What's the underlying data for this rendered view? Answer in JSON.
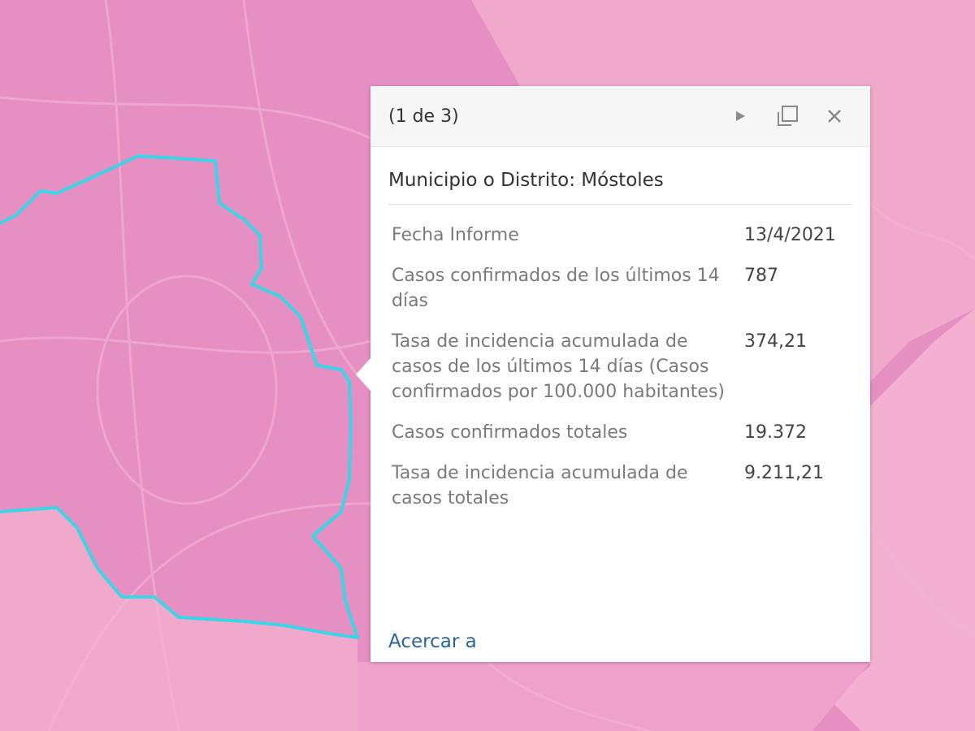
{
  "map": {
    "colors": {
      "base": "#e58fc3",
      "light": "#f0a8cb",
      "boundary": "#3ad6e6",
      "roads": "#f4b6d6"
    }
  },
  "popup": {
    "counter": "(1 de 3)",
    "icons": {
      "next": "play-icon",
      "dock": "dock-icon",
      "close": "close-icon"
    },
    "title": "Municipio o Distrito: Móstoles",
    "fields": [
      {
        "label": "Fecha Informe",
        "value": "13/4/2021"
      },
      {
        "label": "Casos confirmados de los últimos 14 días",
        "value": "787"
      },
      {
        "label": "Tasa de incidencia acumulada de casos de los últimos 14 días (Casos confirmados por 100.000 habitantes)",
        "value": "374,21"
      },
      {
        "label": "Casos confirmados totales",
        "value": "19.372"
      },
      {
        "label": "Tasa de incidencia acumulada de casos totales",
        "value": "9.211,21"
      }
    ],
    "zoom_link": "Acercar a"
  }
}
